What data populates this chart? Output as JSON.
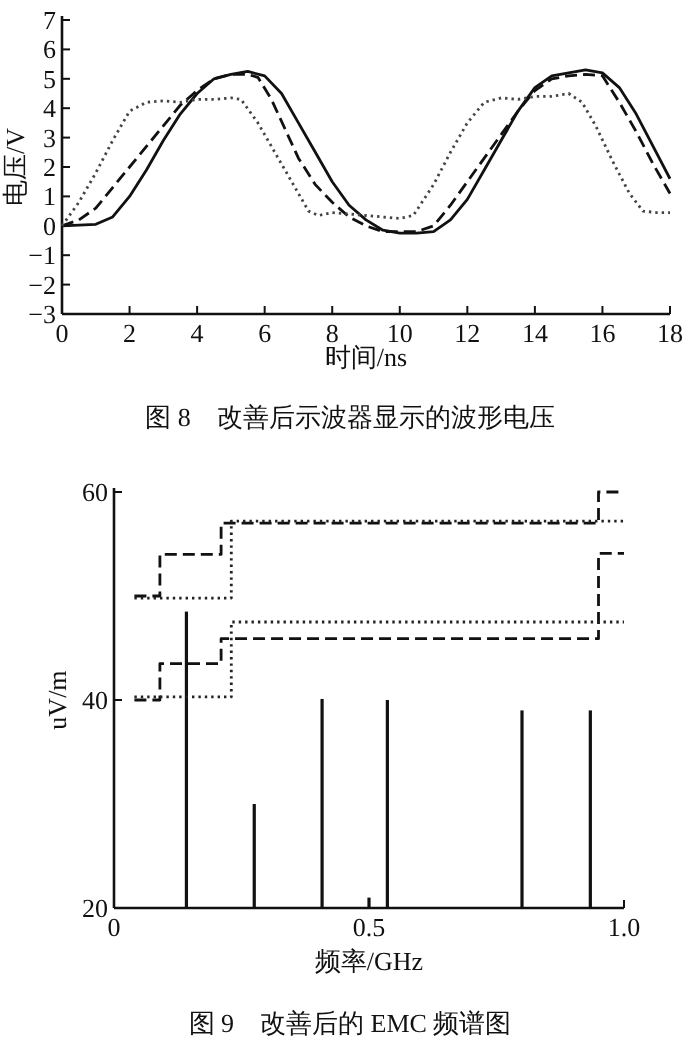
{
  "chart_data": [
    {
      "type": "line",
      "title": "图 8　改善后示波器显示的波形电压",
      "xlabel": "时间/ns",
      "ylabel": "电压/V",
      "xlim": [
        0,
        18
      ],
      "ylim": [
        -3,
        7
      ],
      "xticks": [
        0,
        2,
        4,
        6,
        8,
        10,
        12,
        14,
        16,
        18
      ],
      "yticks": [
        -3,
        -2,
        -1,
        0,
        1,
        2,
        3,
        4,
        5,
        6,
        7
      ],
      "grid": false,
      "series": [
        {
          "color": "#111111",
          "line_style": "solid",
          "x": [
            0,
            1,
            1.5,
            2,
            2.5,
            3,
            3.5,
            4,
            4.5,
            5,
            5.5,
            6,
            6.5,
            7,
            7.5,
            8,
            8.5,
            9,
            9.5,
            10,
            10.5,
            11,
            11.5,
            12,
            12.5,
            13,
            13.5,
            14,
            14.5,
            15,
            15.5,
            16,
            16.5,
            17,
            17.5,
            18
          ],
          "values": [
            0,
            0.05,
            0.3,
            1,
            1.9,
            2.9,
            3.8,
            4.5,
            5,
            5.15,
            5.25,
            5.1,
            4.5,
            3.5,
            2.5,
            1.5,
            0.7,
            0.2,
            -0.15,
            -0.25,
            -0.25,
            -0.2,
            0.2,
            0.9,
            1.9,
            2.9,
            3.9,
            4.7,
            5.1,
            5.2,
            5.3,
            5.2,
            4.7,
            3.8,
            2.7,
            1.6
          ]
        },
        {
          "color": "#111111",
          "line_style": "dashed",
          "x": [
            0,
            0.5,
            1,
            1.5,
            2,
            2.5,
            3,
            3.5,
            4,
            4.5,
            5,
            5.5,
            5.8,
            6.2,
            6.6,
            7,
            7.5,
            8,
            8.5,
            9,
            9.5,
            10,
            10.5,
            11,
            11.5,
            12,
            12.5,
            13,
            13.5,
            14,
            14.5,
            15,
            15.5,
            16,
            16.5,
            17,
            17.5,
            18
          ],
          "values": [
            0,
            0.2,
            0.6,
            1.3,
            2,
            2.7,
            3.4,
            4.1,
            4.6,
            5,
            5.15,
            5.15,
            5.05,
            4.3,
            3.3,
            2.3,
            1.4,
            0.8,
            0.3,
            0,
            -0.2,
            -0.2,
            -0.2,
            0,
            0.7,
            1.5,
            2.3,
            3.1,
            3.9,
            4.6,
            5,
            5.1,
            5.15,
            5.1,
            4.2,
            3.2,
            2.1,
            1.1
          ]
        },
        {
          "color": "#444444",
          "line_style": "dotted",
          "x": [
            0,
            0.5,
            1,
            1.5,
            2,
            2.5,
            3,
            3.5,
            4,
            4.5,
            5,
            5.3,
            5.8,
            6.3,
            6.8,
            7.3,
            7.6,
            8,
            8.5,
            9,
            9.5,
            10,
            10.4,
            11,
            11.5,
            12,
            12.5,
            13,
            13.5,
            14,
            14.5,
            15,
            15.4,
            15.8,
            16.3,
            16.8,
            17.2,
            17.6,
            18
          ],
          "values": [
            0,
            0.8,
            1.8,
            2.9,
            3.9,
            4.2,
            4.25,
            4.2,
            4.3,
            4.3,
            4.35,
            4.3,
            3.5,
            2.5,
            1.5,
            0.5,
            0.35,
            0.45,
            0.4,
            0.35,
            0.3,
            0.25,
            0.35,
            1.4,
            2.5,
            3.5,
            4.2,
            4.35,
            4.3,
            4.4,
            4.4,
            4.5,
            4.2,
            3.4,
            2.2,
            1.1,
            0.5,
            0.45,
            0.45
          ]
        }
      ]
    },
    {
      "type": "step",
      "title": "图 9　改善后的 EMC 频谱图",
      "xlabel": "频率/GHz",
      "ylabel": "uV/m",
      "xlim": [
        0,
        1.0
      ],
      "ylim": [
        20,
        60
      ],
      "xticks": [
        0,
        0.5,
        {
          "value": 1.0,
          "label": "1.0"
        }
      ],
      "yticks": [
        20,
        40,
        60
      ],
      "grid": false,
      "series": [
        {
          "type": "bar",
          "color": "#111111",
          "x": [
            0.142,
            0.275,
            0.408,
            0.5,
            0.536,
            0.8,
            0.934
          ],
          "values": [
            48.5,
            30,
            40.1,
            21,
            40,
            39,
            39
          ]
        },
        {
          "color": "#111111",
          "line_style": "dashed",
          "x": [
            0.04,
            0.09,
            0.21,
            0.95,
            1.0
          ],
          "values": [
            50,
            54,
            57,
            60,
            60
          ]
        },
        {
          "color": "#222222",
          "line_style": "dotted",
          "x": [
            0.04,
            0.23,
            1.0
          ],
          "values": [
            49.8,
            57.2,
            57.2
          ]
        },
        {
          "color": "#111111",
          "line_style": "dashed",
          "x": [
            0.04,
            0.09,
            0.21,
            0.95,
            1.0
          ],
          "values": [
            40,
            43.5,
            45.9,
            54.1,
            54.1
          ]
        },
        {
          "color": "#222222",
          "line_style": "dotted",
          "x": [
            0.04,
            0.23,
            1.0
          ],
          "values": [
            40.3,
            47.5,
            47.5
          ]
        }
      ]
    }
  ]
}
